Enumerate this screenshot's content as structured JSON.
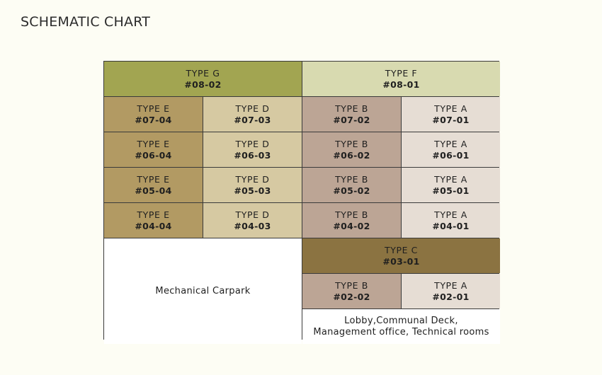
{
  "title": "SCHEMATIC CHART",
  "colors": {
    "type_g": "#a2a551",
    "type_f": "#d8dab0",
    "type_e": "#b29a63",
    "type_d": "#d6c9a2",
    "type_b": "#bca595",
    "type_a": "#e6ddd4",
    "type_c": "#8b7341",
    "plain": "#ffffff"
  },
  "units": [
    {
      "type": "TYPE  G",
      "unit": "#08-02",
      "colorKey": "type_g",
      "col": 1,
      "row": 1,
      "span": 2
    },
    {
      "type": "TYPE  F",
      "unit": "#08-01",
      "colorKey": "type_f",
      "col": 3,
      "row": 1,
      "span": 2
    },
    {
      "type": "TYPE  E",
      "unit": "#07-04",
      "colorKey": "type_e",
      "col": 1,
      "row": 2,
      "span": 1
    },
    {
      "type": "TYPE  D",
      "unit": "#07-03",
      "colorKey": "type_d",
      "col": 2,
      "row": 2,
      "span": 1
    },
    {
      "type": "TYPE  B",
      "unit": "#07-02",
      "colorKey": "type_b",
      "col": 3,
      "row": 2,
      "span": 1
    },
    {
      "type": "TYPE  A",
      "unit": "#07-01",
      "colorKey": "type_a",
      "col": 4,
      "row": 2,
      "span": 1
    },
    {
      "type": "TYPE  E",
      "unit": "#06-04",
      "colorKey": "type_e",
      "col": 1,
      "row": 3,
      "span": 1
    },
    {
      "type": "TYPE  D",
      "unit": "#06-03",
      "colorKey": "type_d",
      "col": 2,
      "row": 3,
      "span": 1
    },
    {
      "type": "TYPE  B",
      "unit": "#06-02",
      "colorKey": "type_b",
      "col": 3,
      "row": 3,
      "span": 1
    },
    {
      "type": "TYPE  A",
      "unit": "#06-01",
      "colorKey": "type_a",
      "col": 4,
      "row": 3,
      "span": 1
    },
    {
      "type": "TYPE  E",
      "unit": "#05-04",
      "colorKey": "type_e",
      "col": 1,
      "row": 4,
      "span": 1
    },
    {
      "type": "TYPE  D",
      "unit": "#05-03",
      "colorKey": "type_d",
      "col": 2,
      "row": 4,
      "span": 1
    },
    {
      "type": "TYPE  B",
      "unit": "#05-02",
      "colorKey": "type_b",
      "col": 3,
      "row": 4,
      "span": 1
    },
    {
      "type": "TYPE  A",
      "unit": "#05-01",
      "colorKey": "type_a",
      "col": 4,
      "row": 4,
      "span": 1
    },
    {
      "type": "TYPE  E",
      "unit": "#04-04",
      "colorKey": "type_e",
      "col": 1,
      "row": 5,
      "span": 1
    },
    {
      "type": "TYPE  D",
      "unit": "#04-03",
      "colorKey": "type_d",
      "col": 2,
      "row": 5,
      "span": 1
    },
    {
      "type": "TYPE  B",
      "unit": "#04-02",
      "colorKey": "type_b",
      "col": 3,
      "row": 5,
      "span": 1
    },
    {
      "type": "TYPE  A",
      "unit": "#04-01",
      "colorKey": "type_a",
      "col": 4,
      "row": 5,
      "span": 1
    },
    {
      "type": "TYPE  C",
      "unit": "#03-01",
      "colorKey": "type_c",
      "col": 3,
      "row": 6,
      "span": 2
    },
    {
      "type": "TYPE  B",
      "unit": "#02-02",
      "colorKey": "type_b",
      "col": 3,
      "row": 7,
      "span": 1
    },
    {
      "type": "TYPE  A",
      "unit": "#02-01",
      "colorKey": "type_a",
      "col": 4,
      "row": 7,
      "span": 1
    }
  ],
  "areas": {
    "carpark": "Mechanical Carpark",
    "lobby_line1": "Lobby,Communal Deck,",
    "lobby_line2": "Management office, Technical rooms"
  }
}
